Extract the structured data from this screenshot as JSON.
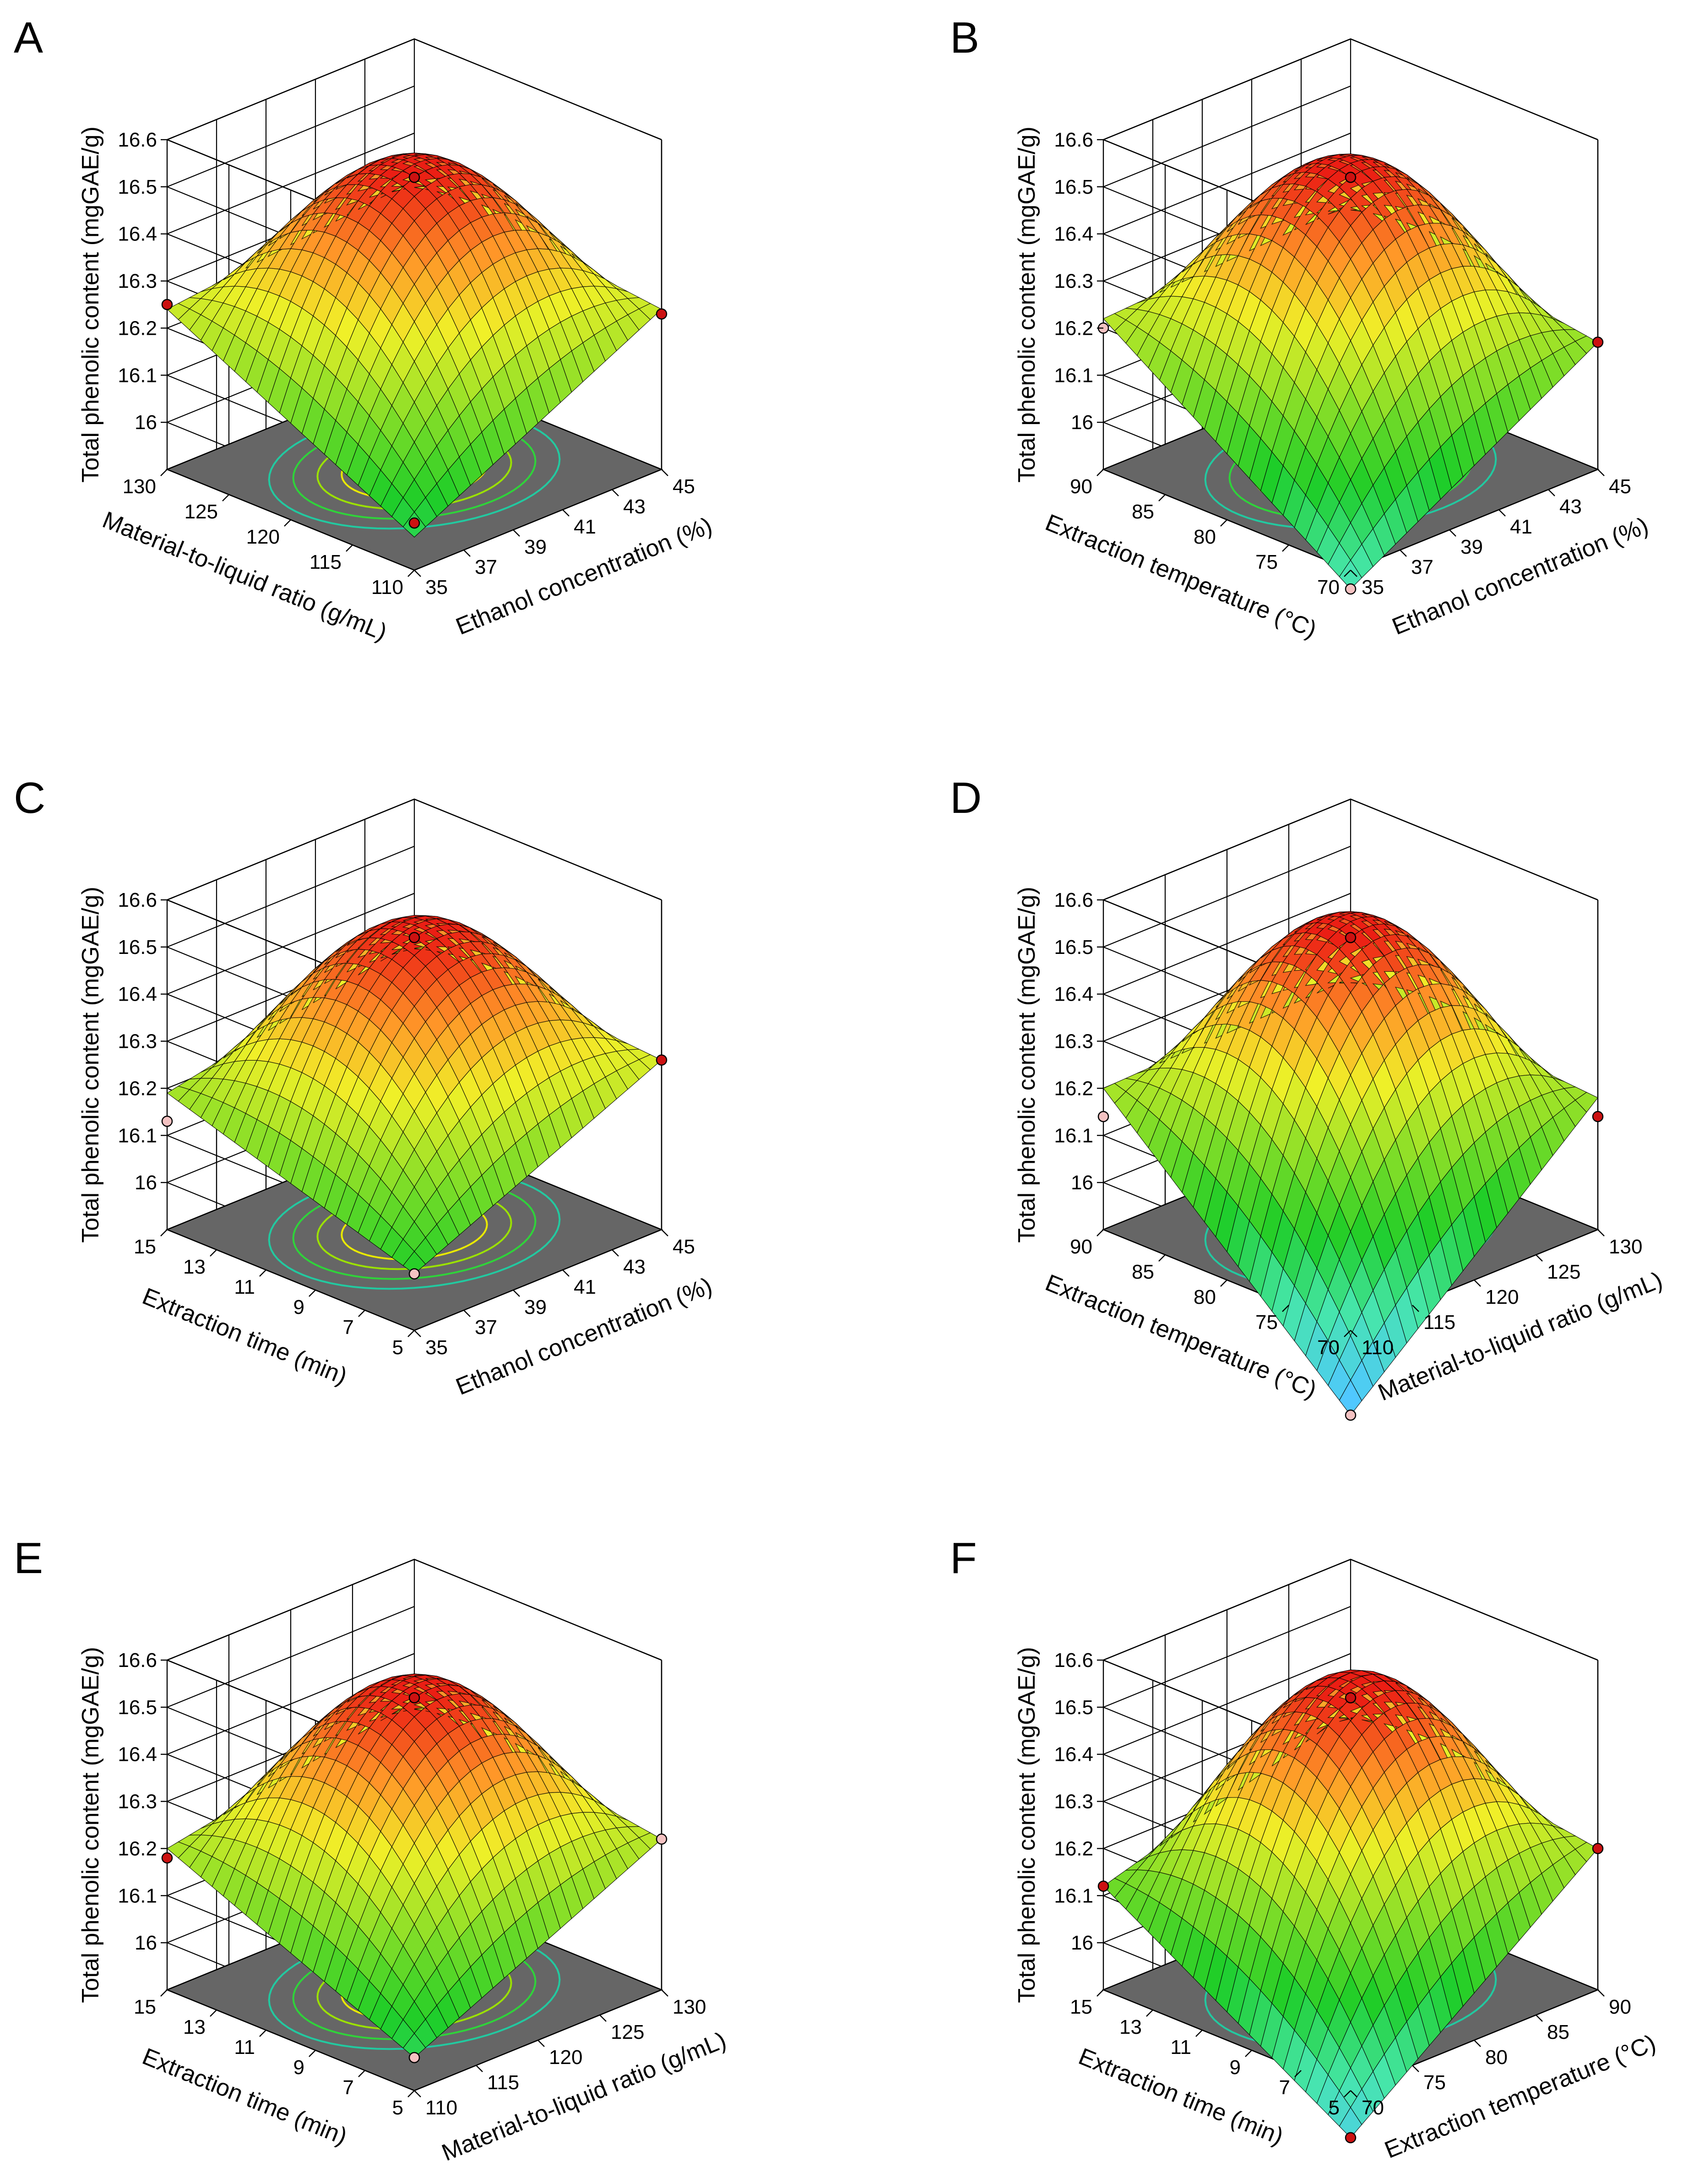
{
  "figure": {
    "panels_description": "Six response surface plots of total phenolic content"
  },
  "chart_data": [
    {
      "type": "surface3d",
      "panel": "A",
      "zlabel": "Total phenolic content (mgGAE/g)",
      "xlabel": "Ethanol concentration (%)",
      "ylabel": "Material-to-liquid ratio (g/mL)",
      "x_ticks": [
        "35",
        "37",
        "39",
        "41",
        "43",
        "45"
      ],
      "y_ticks": [
        "110",
        "115",
        "120",
        "125",
        "130"
      ],
      "z_ticks": [
        "16",
        "16.1",
        "16.2",
        "16.3",
        "16.4",
        "16.5",
        "16.6"
      ],
      "x_range": [
        35,
        45
      ],
      "y_range": [
        110,
        130
      ],
      "z_range": [
        15.9,
        16.6
      ],
      "peak": 16.52,
      "corners": {
        "x_low_y_low": 15.97,
        "x_high_y_low": 16.24,
        "x_low_y_high": 16.24,
        "x_high_y_high": 16.3
      },
      "design_points": [
        {
          "x": 40,
          "y": 120,
          "z": 16.52,
          "color": "#cc1111"
        },
        {
          "x": 35,
          "y": 130,
          "z": 16.25,
          "color": "#cc1111"
        },
        {
          "x": 45,
          "y": 110,
          "z": 16.23,
          "color": "#cc1111"
        },
        {
          "x": 35,
          "y": 110,
          "z": 16.0,
          "color": "#cc1111"
        }
      ]
    },
    {
      "type": "surface3d",
      "panel": "B",
      "zlabel": "Total phenolic content (mgGAE/g)",
      "xlabel": "Ethanol concentration (%)",
      "ylabel": "Extraction temperature (°C)",
      "x_ticks": [
        "35",
        "37",
        "39",
        "41",
        "43",
        "45"
      ],
      "y_ticks": [
        "70",
        "75",
        "80",
        "85",
        "90"
      ],
      "z_ticks": [
        "16",
        "16.1",
        "16.2",
        "16.3",
        "16.4",
        "16.5",
        "16.6"
      ],
      "x_range": [
        35,
        45
      ],
      "y_range": [
        70,
        90
      ],
      "z_range": [
        15.9,
        16.6
      ],
      "peak": 16.52,
      "corners": {
        "x_low_y_low": 15.86,
        "x_high_y_low": 16.17,
        "x_low_y_high": 16.22,
        "x_high_y_high": 16.25
      },
      "design_points": [
        {
          "x": 40,
          "y": 80,
          "z": 16.52,
          "color": "#cc1111"
        },
        {
          "x": 35,
          "y": 90,
          "z": 16.2,
          "color": "#f4c2c2"
        },
        {
          "x": 45,
          "y": 70,
          "z": 16.17,
          "color": "#cc1111"
        },
        {
          "x": 35,
          "y": 70,
          "z": 15.86,
          "color": "#f4c2c2"
        }
      ]
    },
    {
      "type": "surface3d",
      "panel": "C",
      "zlabel": "Total phenolic content (mgGAE/g)",
      "xlabel": "Ethanol concentration (%)",
      "ylabel": "Extraction time (min)",
      "x_ticks": [
        "35",
        "37",
        "39",
        "41",
        "43",
        "45"
      ],
      "y_ticks": [
        "5",
        "7",
        "9",
        "11",
        "13",
        "15"
      ],
      "z_ticks": [
        "16",
        "16.1",
        "16.2",
        "16.3",
        "16.4",
        "16.5",
        "16.6"
      ],
      "x_range": [
        35,
        45
      ],
      "y_range": [
        5,
        15
      ],
      "z_range": [
        15.9,
        16.6
      ],
      "peak": 16.52,
      "corners": {
        "x_low_y_low": 16.02,
        "x_high_y_low": 16.26,
        "x_low_y_high": 16.19,
        "x_high_y_high": 16.3
      },
      "design_points": [
        {
          "x": 40,
          "y": 10,
          "z": 16.52,
          "color": "#cc1111"
        },
        {
          "x": 35,
          "y": 15,
          "z": 16.13,
          "color": "#f4c2c2"
        },
        {
          "x": 45,
          "y": 5,
          "z": 16.26,
          "color": "#cc1111"
        },
        {
          "x": 35,
          "y": 5,
          "z": 16.02,
          "color": "#f4c2c2"
        }
      ]
    },
    {
      "type": "surface3d",
      "panel": "D",
      "zlabel": "Total phenolic content (mgGAE/g)",
      "xlabel": "Material-to-liquid ratio (g/mL)",
      "ylabel": "Extraction temperature (°C)",
      "x_ticks": [
        "110",
        "115",
        "120",
        "125",
        "130"
      ],
      "y_ticks": [
        "70",
        "75",
        "80",
        "85",
        "90"
      ],
      "z_ticks": [
        "16",
        "16.1",
        "16.2",
        "16.3",
        "16.4",
        "16.5",
        "16.6"
      ],
      "x_range": [
        110,
        130
      ],
      "y_range": [
        70,
        90
      ],
      "z_range": [
        15.9,
        16.6
      ],
      "peak": 16.52,
      "corners": {
        "x_low_y_low": 15.72,
        "x_high_y_low": 16.18,
        "x_low_y_high": 16.2,
        "x_high_y_high": 16.22
      },
      "design_points": [
        {
          "x": 120,
          "y": 80,
          "z": 16.52,
          "color": "#cc1111"
        },
        {
          "x": 110,
          "y": 90,
          "z": 16.14,
          "color": "#f4c2c2"
        },
        {
          "x": 130,
          "y": 70,
          "z": 16.14,
          "color": "#cc1111"
        },
        {
          "x": 110,
          "y": 70,
          "z": 15.72,
          "color": "#f4c2c2"
        }
      ]
    },
    {
      "type": "surface3d",
      "panel": "E",
      "zlabel": "Total phenolic content (mgGAE/g)",
      "xlabel": "Material-to-liquid ratio (g/mL)",
      "ylabel": "Extraction time (min)",
      "x_ticks": [
        "110",
        "115",
        "120",
        "125",
        "130"
      ],
      "y_ticks": [
        "5",
        "7",
        "9",
        "11",
        "13",
        "15"
      ],
      "z_ticks": [
        "16",
        "16.1",
        "16.2",
        "16.3",
        "16.4",
        "16.5",
        "16.6"
      ],
      "x_range": [
        110,
        130
      ],
      "y_range": [
        5,
        15
      ],
      "z_range": [
        15.9,
        16.6
      ],
      "peak": 16.52,
      "corners": {
        "x_low_y_low": 15.97,
        "x_high_y_low": 16.22,
        "x_low_y_high": 16.2,
        "x_high_y_high": 16.3
      },
      "design_points": [
        {
          "x": 120,
          "y": 10,
          "z": 16.52,
          "color": "#cc1111"
        },
        {
          "x": 110,
          "y": 15,
          "z": 16.18,
          "color": "#cc1111"
        },
        {
          "x": 130,
          "y": 5,
          "z": 16.22,
          "color": "#f4c2c2"
        },
        {
          "x": 110,
          "y": 5,
          "z": 15.97,
          "color": "#f4c2c2"
        }
      ]
    },
    {
      "type": "surface3d",
      "panel": "F",
      "zlabel": "Total phenolic content (mgGAE/g)",
      "xlabel": "Extraction temperature (°C)",
      "ylabel": "Extraction time (min)",
      "x_ticks": [
        "70",
        "75",
        "80",
        "85",
        "90"
      ],
      "y_ticks": [
        "5",
        "7",
        "9",
        "11",
        "13",
        "15"
      ],
      "z_ticks": [
        "16",
        "16.1",
        "16.2",
        "16.3",
        "16.4",
        "16.5",
        "16.6"
      ],
      "x_range": [
        70,
        90
      ],
      "y_range": [
        5,
        15
      ],
      "z_range": [
        15.9,
        16.6
      ],
      "peak": 16.52,
      "corners": {
        "x_low_y_low": 15.8,
        "x_high_y_low": 16.2,
        "x_low_y_high": 16.12,
        "x_high_y_high": 16.28
      },
      "design_points": [
        {
          "x": 80,
          "y": 10,
          "z": 16.52,
          "color": "#cc1111"
        },
        {
          "x": 70,
          "y": 15,
          "z": 16.12,
          "color": "#cc1111"
        },
        {
          "x": 90,
          "y": 5,
          "z": 16.2,
          "color": "#cc1111"
        },
        {
          "x": 70,
          "y": 5,
          "z": 15.8,
          "color": "#cc1111"
        }
      ]
    }
  ]
}
